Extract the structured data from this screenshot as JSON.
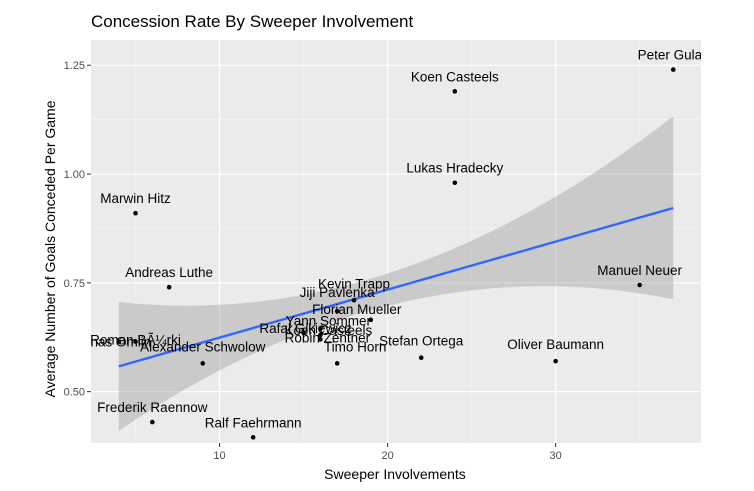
{
  "chart_data": {
    "type": "scatter",
    "title": "Concession Rate By Sweeper Involvement",
    "xlabel": "Sweeper Involvements",
    "ylabel": "Average Number of Goals Conceded Per Game",
    "xlim": [
      2.35,
      38.65
    ],
    "ylim": [
      0.382,
      1.308
    ],
    "x_ticks": [
      10,
      20,
      30
    ],
    "x_tick_labels": [
      "10",
      "20",
      "30"
    ],
    "y_ticks": [
      0.5,
      0.75,
      1.0,
      1.25
    ],
    "y_tick_labels": [
      "0.50",
      "0.75",
      "1.00",
      "1.25"
    ],
    "grid": true,
    "points": [
      {
        "label": "Peter Gulacsi",
        "x": 37,
        "y": 1.24
      },
      {
        "label": "Koen Casteels",
        "x": 24,
        "y": 1.19
      },
      {
        "label": "Lukas Hradecky",
        "x": 24,
        "y": 0.98
      },
      {
        "label": "Marwin Hitz",
        "x": 5,
        "y": 0.91
      },
      {
        "label": "Andreas Luthe",
        "x": 7,
        "y": 0.74
      },
      {
        "label": "Manuel Neuer",
        "x": 35,
        "y": 0.745
      },
      {
        "label": "Kevin Trapp",
        "x": 18,
        "y": 0.71
      },
      {
        "label": "Jiji Pavlenka",
        "x": 17,
        "y": 0.685
      },
      {
        "label": "Florian Mueller",
        "x": 19,
        "y": 0.665
      },
      {
        "label": "Yann Sommer",
        "x": 16,
        "y": 0.645
      },
      {
        "label": "Koen Casteels",
        "x": 16,
        "y": 0.63
      },
      {
        "label": "Rafal Gikiewicz",
        "x": 15,
        "y": 0.635
      },
      {
        "label": "Robin Zentner",
        "x": 16,
        "y": 0.62
      },
      {
        "label": "Roman BÃ¼rki",
        "x": 5,
        "y": 0.615
      },
      {
        "label": "Jonas Omlin",
        "x": 4,
        "y": 0.615
      },
      {
        "label": "Alexander Schwolow",
        "x": 9,
        "y": 0.565
      },
      {
        "label": "Timo Horn",
        "x": 17,
        "y": 0.565
      },
      {
        "label": "Stefan Ortega",
        "x": 22,
        "y": 0.578
      },
      {
        "label": "Oliver Baumann",
        "x": 30,
        "y": 0.57
      },
      {
        "label": "Frederik Raennow",
        "x": 6,
        "y": 0.43
      },
      {
        "label": "Ralf Faehrmann",
        "x": 12,
        "y": 0.395
      }
    ],
    "point_labels": [
      "Peter Gulac",
      "Koen Casteels",
      "Lukas Hradecky",
      "Marwin Hitz",
      "Andreas Luthe",
      "Manuel Neuer",
      "Kevin Trapp",
      "Jiji Pavlenka",
      "Florian Mueller",
      "Yann Sommer",
      "Koen Casteels",
      "Rafal Gikiewicz",
      "Robin Zentner",
      "Roman BÃ¼rki",
      "Jonas Omlin",
      "Alexander Schwolow",
      "Timo Horn",
      "Stefan Ortega",
      "Oliver Baumann",
      "Frederik Raennow",
      "Ralf Faehrmann"
    ],
    "trend": {
      "method": "lm",
      "x_range": [
        4,
        37
      ],
      "fit": [
        [
          4,
          0.558
        ],
        [
          37,
          0.922
        ]
      ],
      "ci_lower": [
        [
          4,
          0.41
        ],
        [
          20.5,
          0.702
        ],
        [
          37,
          0.712
        ]
      ],
      "ci_upper": [
        [
          4,
          0.706
        ],
        [
          20.5,
          0.778
        ],
        [
          37,
          1.133
        ]
      ]
    },
    "colors": {
      "panel_bg": "#ebebeb",
      "grid_major": "#ffffff",
      "grid_minor": "#f5f5f5",
      "point": "#000000",
      "fit_line": "#3366ff",
      "ci_band": "#999999"
    }
  }
}
